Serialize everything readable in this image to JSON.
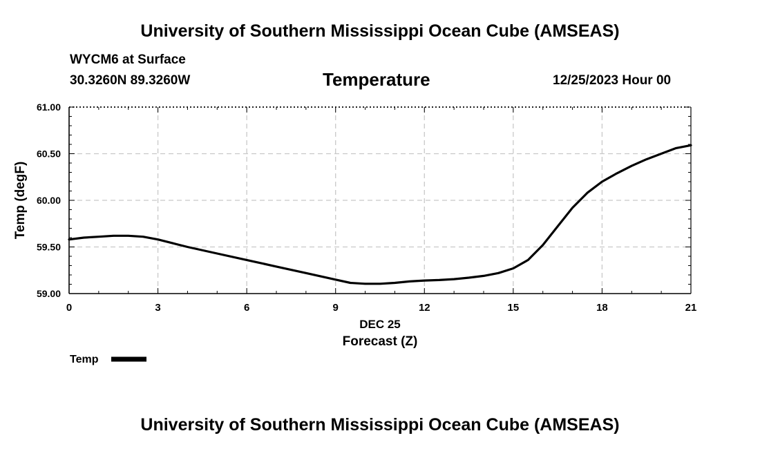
{
  "header": {
    "title_top": "University of Southern Mississippi Ocean Cube (AMSEAS)",
    "station": "WYCM6 at Surface",
    "coords": "30.3260N  89.3260W",
    "datetime": "12/25/2023 Hour 00"
  },
  "footer": {
    "title_bottom": "University of Southern Mississippi Ocean Cube (AMSEAS)"
  },
  "chart_data": {
    "type": "line",
    "title": "Temperature",
    "xlabel": "Forecast (Z)",
    "xlabel_date": "DEC 25",
    "ylabel": "Temp (degF)",
    "xlim": [
      0,
      21
    ],
    "ylim": [
      59.0,
      61.0
    ],
    "xticks": [
      0,
      3,
      6,
      9,
      12,
      15,
      18,
      21
    ],
    "xtick_labels": [
      "0",
      "3",
      "6",
      "9",
      "12",
      "15",
      "18",
      "21"
    ],
    "yticks": [
      59.0,
      59.5,
      60.0,
      60.5,
      61.0
    ],
    "ytick_labels": [
      "59.00",
      "59.50",
      "60.00",
      "60.50",
      "61.00"
    ],
    "grid": true,
    "series": [
      {
        "name": "Temp",
        "color": "#000000",
        "x": [
          0,
          0.5,
          1,
          1.5,
          2,
          2.5,
          3,
          3.5,
          4,
          5,
          6,
          7,
          8,
          9,
          9.5,
          10,
          10.5,
          11,
          11.5,
          12,
          12.5,
          13,
          13.5,
          14,
          14.5,
          15,
          15.5,
          16,
          16.5,
          17,
          17.5,
          18,
          18.5,
          19,
          19.5,
          20,
          20.5,
          21
        ],
        "values": [
          59.58,
          59.6,
          59.61,
          59.62,
          59.62,
          59.61,
          59.58,
          59.54,
          59.5,
          59.43,
          59.36,
          59.29,
          59.22,
          59.15,
          59.115,
          59.105,
          59.105,
          59.115,
          59.13,
          59.14,
          59.145,
          59.155,
          59.17,
          59.19,
          59.22,
          59.27,
          59.36,
          59.52,
          59.72,
          59.92,
          60.08,
          60.2,
          60.29,
          60.37,
          60.44,
          60.5,
          60.56,
          60.59
        ]
      }
    ],
    "legend": {
      "label": "Temp",
      "position": "bottom-left"
    }
  }
}
